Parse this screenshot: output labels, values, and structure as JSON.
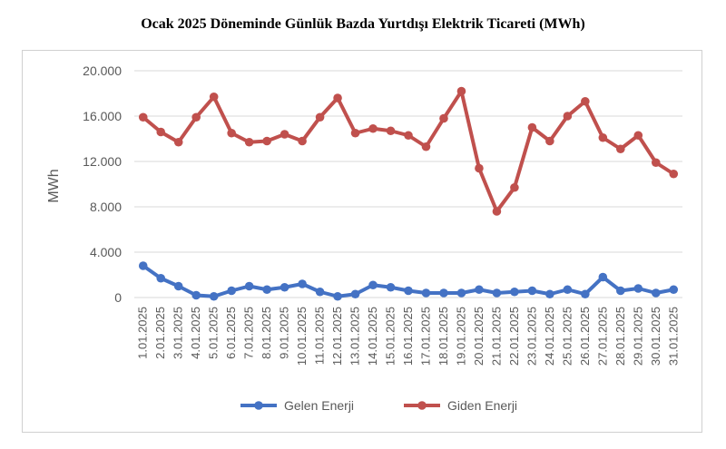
{
  "chart_data": {
    "type": "line",
    "title": "Ocak 2025 Döneminde Günlük Bazda Yurtdışı Elektrik Ticareti (MWh)",
    "xlabel": "",
    "ylabel": "MWh",
    "ylim": [
      0,
      20000
    ],
    "y_ticks": [
      0,
      4000,
      8000,
      12000,
      16000,
      20000
    ],
    "y_tick_labels": [
      "0",
      "4.000",
      "8.000",
      "12.000",
      "16.000",
      "20.000"
    ],
    "grid": true,
    "legend_position": "bottom",
    "categories": [
      "1.01.2025",
      "2.01.2025",
      "3.01.2025",
      "4.01.2025",
      "5.01.2025",
      "6.01.2025",
      "7.01.2025",
      "8.01.2025",
      "9.01.2025",
      "10.01.2025",
      "11.01.2025",
      "12.01.2025",
      "13.01.2025",
      "14.01.2025",
      "15.01.2025",
      "16.01.2025",
      "17.01.2025",
      "18.01.2025",
      "19.01.2025",
      "20.01.2025",
      "21.01.2025",
      "22.01.2025",
      "23.01.2025",
      "24.01.2025",
      "25.01.2025",
      "26.01.2025",
      "27.01.2025",
      "28.01.2025",
      "29.01.2025",
      "30.01.2025",
      "31.01.2025"
    ],
    "series": [
      {
        "name": "Gelen Enerji",
        "color": "#4472c4",
        "values": [
          2800,
          1700,
          1000,
          200,
          100,
          600,
          1000,
          700,
          900,
          1200,
          500,
          100,
          300,
          1100,
          900,
          600,
          400,
          400,
          400,
          700,
          400,
          500,
          600,
          300,
          700,
          300,
          1800,
          600,
          800,
          400,
          700
        ]
      },
      {
        "name": "Giden Enerji",
        "color": "#c0504d",
        "values": [
          15900,
          14600,
          13700,
          15900,
          17700,
          14500,
          13700,
          13800,
          14400,
          13800,
          15900,
          17600,
          14500,
          14900,
          14700,
          14300,
          13300,
          15800,
          18200,
          11400,
          7600,
          9700,
          15000,
          13800,
          16000,
          17300,
          14100,
          13100,
          14300,
          11900,
          10900
        ]
      }
    ]
  }
}
